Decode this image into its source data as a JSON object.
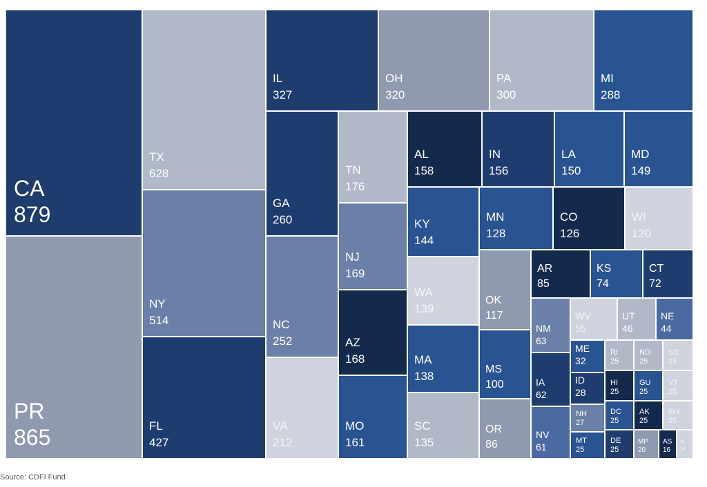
{
  "chart_data": {
    "type": "treemap",
    "title": "",
    "palette": {
      "darkest": "#142a4d",
      "dark": "#1f3c6e",
      "mid": "#2a5391",
      "blue": "#4b6aa1",
      "slate": "#6b80a8",
      "grey": "#8f9ab0",
      "light": "#b1b9c8",
      "pale": "#cfd3dd"
    },
    "items": [
      {
        "name": "CA",
        "value": 879,
        "tone": "dark"
      },
      {
        "name": "PR",
        "value": 865,
        "tone": "grey"
      },
      {
        "name": "TX",
        "value": 628,
        "tone": "light"
      },
      {
        "name": "NY",
        "value": 514,
        "tone": "slate"
      },
      {
        "name": "FL",
        "value": 427,
        "tone": "dark"
      },
      {
        "name": "IL",
        "value": 327,
        "tone": "dark"
      },
      {
        "name": "OH",
        "value": 320,
        "tone": "grey"
      },
      {
        "name": "PA",
        "value": 300,
        "tone": "light"
      },
      {
        "name": "MI",
        "value": 288,
        "tone": "mid"
      },
      {
        "name": "GA",
        "value": 260,
        "tone": "dark"
      },
      {
        "name": "NC",
        "value": 252,
        "tone": "slate"
      },
      {
        "name": "VA",
        "value": 212,
        "tone": "pale"
      },
      {
        "name": "TN",
        "value": 176,
        "tone": "light"
      },
      {
        "name": "NJ",
        "value": 169,
        "tone": "slate"
      },
      {
        "name": "AZ",
        "value": 168,
        "tone": "darkest"
      },
      {
        "name": "MO",
        "value": 161,
        "tone": "mid"
      },
      {
        "name": "AL",
        "value": 158,
        "tone": "darkest"
      },
      {
        "name": "IN",
        "value": 156,
        "tone": "dark"
      },
      {
        "name": "LA",
        "value": 150,
        "tone": "mid"
      },
      {
        "name": "MD",
        "value": 149,
        "tone": "mid"
      },
      {
        "name": "KY",
        "value": 144,
        "tone": "mid"
      },
      {
        "name": "WA",
        "value": 139,
        "tone": "pale"
      },
      {
        "name": "MA",
        "value": 138,
        "tone": "mid"
      },
      {
        "name": "SC",
        "value": 135,
        "tone": "light"
      },
      {
        "name": "MN",
        "value": 128,
        "tone": "mid"
      },
      {
        "name": "CO",
        "value": 126,
        "tone": "darkest"
      },
      {
        "name": "WI",
        "value": 120,
        "tone": "pale"
      },
      {
        "name": "OK",
        "value": 117,
        "tone": "grey"
      },
      {
        "name": "MS",
        "value": 100,
        "tone": "mid"
      },
      {
        "name": "OR",
        "value": 86,
        "tone": "grey"
      },
      {
        "name": "AR",
        "value": 85,
        "tone": "darkest"
      },
      {
        "name": "KS",
        "value": 74,
        "tone": "mid"
      },
      {
        "name": "CT",
        "value": 72,
        "tone": "dark"
      },
      {
        "name": "NM",
        "value": 63,
        "tone": "slate"
      },
      {
        "name": "IA",
        "value": 62,
        "tone": "dark"
      },
      {
        "name": "NV",
        "value": 61,
        "tone": "blue"
      },
      {
        "name": "WV",
        "value": 55,
        "tone": "pale"
      },
      {
        "name": "UT",
        "value": 46,
        "tone": "light"
      },
      {
        "name": "NE",
        "value": 44,
        "tone": "blue"
      },
      {
        "name": "ME",
        "value": 32,
        "tone": "mid"
      },
      {
        "name": "ID",
        "value": 28,
        "tone": "dark"
      },
      {
        "name": "NH",
        "value": 27,
        "tone": "slate"
      },
      {
        "name": "MT",
        "value": 25,
        "tone": "mid"
      },
      {
        "name": "RI",
        "value": 25,
        "tone": "light"
      },
      {
        "name": "ND",
        "value": 25,
        "tone": "light"
      },
      {
        "name": "SD",
        "value": 25,
        "tone": "pale"
      },
      {
        "name": "HI",
        "value": 25,
        "tone": "darkest"
      },
      {
        "name": "GU",
        "value": 25,
        "tone": "mid"
      },
      {
        "name": "VT",
        "value": 25,
        "tone": "pale"
      },
      {
        "name": "DC",
        "value": 25,
        "tone": "mid"
      },
      {
        "name": "AK",
        "value": 25,
        "tone": "darkest"
      },
      {
        "name": "WY",
        "value": 25,
        "tone": "pale"
      },
      {
        "name": "DE",
        "value": 25,
        "tone": "dark"
      },
      {
        "name": "MP",
        "value": 20,
        "tone": "grey"
      },
      {
        "name": "AS",
        "value": 16,
        "tone": "darkest"
      },
      {
        "name": "VI",
        "value": 14,
        "tone": "pale"
      }
    ]
  },
  "source": "Source: CDFI Fund"
}
